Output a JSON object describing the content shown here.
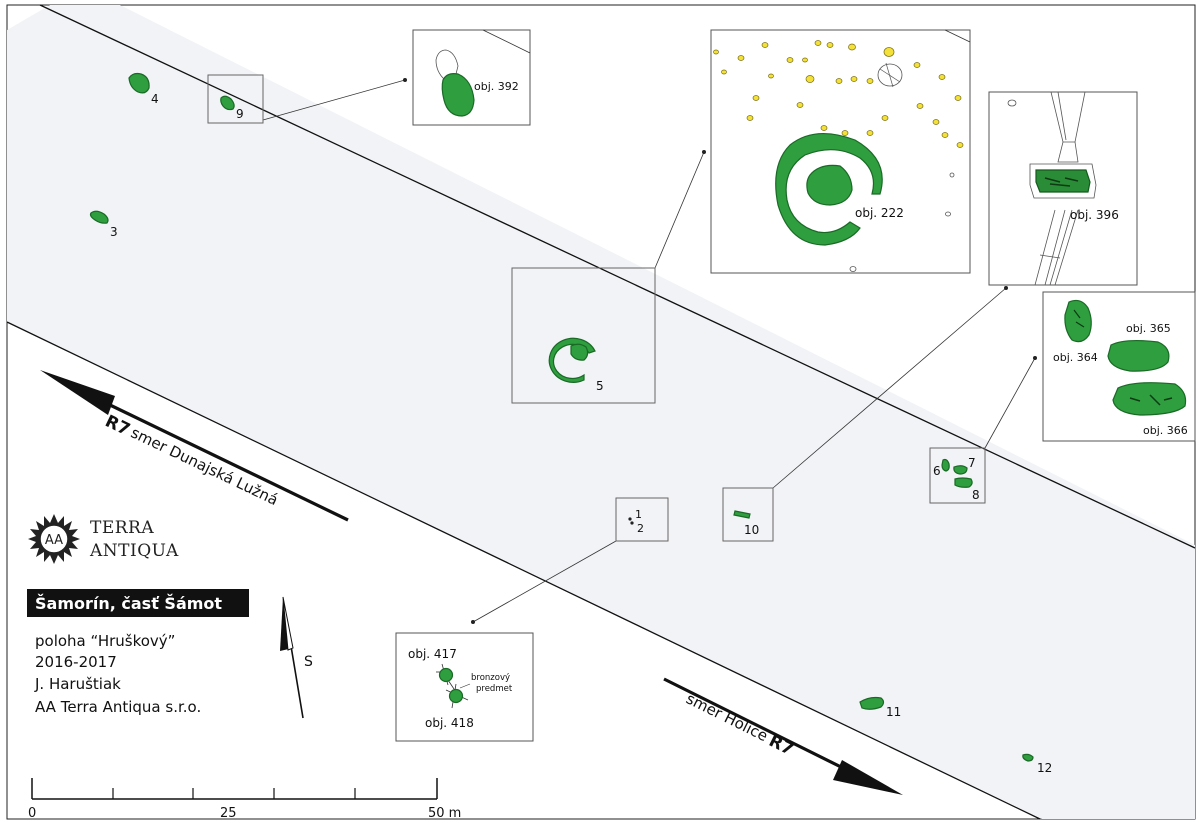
{
  "features": {
    "f1": "1",
    "f2": "2",
    "f3": "3",
    "f4": "4",
    "f5": "5",
    "f6": "6",
    "f7": "7",
    "f8": "8",
    "f9": "9",
    "f10": "10",
    "f11": "11",
    "f12": "12"
  },
  "insets": {
    "obj392": "obj. 392",
    "obj222": "obj. 222",
    "obj396": "obj. 396",
    "obj364": "obj. 364",
    "obj365": "obj. 365",
    "obj366": "obj. 366",
    "obj417": "obj. 417",
    "obj418": "obj. 418",
    "bronze_line1": "bronzový",
    "bronze_line2": "predmet"
  },
  "roads": {
    "north_code": "R7",
    "north_label": "smer Dunajská Lužná",
    "south_code": "R7",
    "south_label": "smer Holice"
  },
  "logo": {
    "monogram": "AA",
    "line1": "TERRA",
    "line2": "ANTIQUA"
  },
  "site": {
    "title": "Šamorín, časť Šámot",
    "location": "poloha “Hruškový”",
    "years": "2016-2017",
    "author": "J. Haruštiak",
    "company": "AA Terra Antiqua s.r.o."
  },
  "north_arrow": {
    "label": "S"
  },
  "scale": {
    "labels": [
      "0",
      "25",
      "50 m"
    ]
  },
  "colors": {
    "feature": "#2e9e3e",
    "posthole": "#f3e13a",
    "corridor": "#f1f3f6"
  }
}
